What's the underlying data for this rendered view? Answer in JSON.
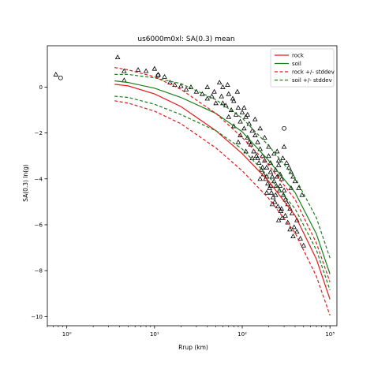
{
  "chart_data": {
    "type": "scatter",
    "title": "us6000m0xl: SA(0.3) mean",
    "xlabel": "Rrup (km)",
    "ylabel": "SA(0.3) ln(g)",
    "xscale": "log",
    "xlim": [
      0.6,
      1200
    ],
    "ylim": [
      -10.4,
      1.8
    ],
    "grid": false,
    "legend_position": "top-right",
    "x_ticks": [
      {
        "value": 1,
        "label": "10⁰"
      },
      {
        "value": 10,
        "label": "10¹"
      },
      {
        "value": 100,
        "label": "10²"
      },
      {
        "value": 1000,
        "label": "10³"
      }
    ],
    "y_ticks": [
      {
        "value": 0,
        "label": "0"
      },
      {
        "value": -2,
        "label": "−2"
      },
      {
        "value": -4,
        "label": "−4"
      },
      {
        "value": -6,
        "label": "−6"
      },
      {
        "value": -8,
        "label": "−8"
      },
      {
        "value": -10,
        "label": "−10"
      }
    ],
    "series": [
      {
        "name": "rock",
        "style": "solid",
        "color": "#e41a1c",
        "x": [
          3.5,
          5,
          10,
          20,
          50,
          100,
          200,
          400,
          700,
          1000
        ],
        "y": [
          0.12,
          0.05,
          -0.3,
          -0.85,
          -1.9,
          -2.9,
          -4.1,
          -5.6,
          -7.5,
          -9.25
        ]
      },
      {
        "name": "soil",
        "style": "solid",
        "color": "#1a7f1a",
        "x": [
          3.5,
          5,
          10,
          20,
          50,
          100,
          200,
          400,
          700,
          1000
        ],
        "y": [
          0.27,
          0.2,
          -0.05,
          -0.45,
          -1.15,
          -1.95,
          -3.2,
          -4.6,
          -6.4,
          -8.15
        ]
      },
      {
        "name": "rock +/- stddev",
        "style": "dashed",
        "color": "#e41a1c",
        "x": [
          3.5,
          5,
          10,
          20,
          50,
          100,
          200,
          400,
          700,
          1000
        ],
        "y": [
          0.85,
          0.75,
          0.45,
          -0.1,
          -1.15,
          -2.2,
          -3.4,
          -4.9,
          -6.8,
          -8.5
        ]
      },
      {
        "name": "rock +/- stddev (lower)",
        "style": "dashed",
        "color": "#e41a1c",
        "x": [
          3.5,
          5,
          10,
          20,
          50,
          100,
          200,
          400,
          700,
          1000
        ],
        "y": [
          -0.6,
          -0.7,
          -1.05,
          -1.6,
          -2.65,
          -3.65,
          -4.85,
          -6.35,
          -8.25,
          -9.95
        ]
      },
      {
        "name": "soil +/- stddev",
        "style": "dashed",
        "color": "#1a7f1a",
        "x": [
          3.5,
          5,
          10,
          20,
          50,
          100,
          200,
          400,
          700,
          1000
        ],
        "y": [
          0.55,
          0.55,
          0.4,
          0.15,
          -0.55,
          -1.35,
          -2.55,
          -3.95,
          -5.7,
          -7.45
        ]
      },
      {
        "name": "soil +/- stddev (lower)",
        "style": "dashed",
        "color": "#1a7f1a",
        "x": [
          3.5,
          5,
          10,
          20,
          50,
          100,
          200,
          400,
          700,
          1000
        ],
        "y": [
          -0.4,
          -0.45,
          -0.75,
          -1.2,
          -1.9,
          -2.7,
          -3.9,
          -5.3,
          -7.1,
          -8.85
        ]
      }
    ],
    "observations": {
      "triangles": [
        [
          0.75,
          0.55
        ],
        [
          3.8,
          1.3
        ],
        [
          4.5,
          0.7
        ],
        [
          4.5,
          0.3
        ],
        [
          6.5,
          0.75
        ],
        [
          8,
          0.7
        ],
        [
          10,
          0.8
        ],
        [
          11,
          0.55
        ],
        [
          13,
          0.45
        ],
        [
          15,
          0.2
        ],
        [
          17,
          0.1
        ],
        [
          20,
          0.05
        ],
        [
          23,
          -0.1
        ],
        [
          26,
          0.0
        ],
        [
          30,
          -0.2
        ],
        [
          35,
          -0.3
        ],
        [
          40,
          -0.5
        ],
        [
          45,
          -0.4
        ],
        [
          50,
          -0.7
        ],
        [
          55,
          0.2
        ],
        [
          60,
          0.0
        ],
        [
          65,
          -0.8
        ],
        [
          70,
          -0.3
        ],
        [
          75,
          -1.0
        ],
        [
          80,
          -0.6
        ],
        [
          85,
          -1.2
        ],
        [
          90,
          -0.9
        ],
        [
          95,
          -1.5
        ],
        [
          100,
          -1.1
        ],
        [
          105,
          -1.8
        ],
        [
          110,
          -1.3
        ],
        [
          115,
          -2.2
        ],
        [
          120,
          -1.6
        ],
        [
          125,
          -2.5
        ],
        [
          130,
          -1.9
        ],
        [
          135,
          -2.8
        ],
        [
          140,
          -2.1
        ],
        [
          145,
          -3.0
        ],
        [
          150,
          -2.4
        ],
        [
          155,
          -3.3
        ],
        [
          160,
          -2.7
        ],
        [
          165,
          -3.6
        ],
        [
          170,
          -3.0
        ],
        [
          175,
          -3.8
        ],
        [
          180,
          -3.2
        ],
        [
          185,
          -4.0
        ],
        [
          190,
          -3.5
        ],
        [
          195,
          -4.2
        ],
        [
          200,
          -3.0
        ],
        [
          205,
          -4.4
        ],
        [
          210,
          -3.7
        ],
        [
          215,
          -4.6
        ],
        [
          220,
          -3.9
        ],
        [
          225,
          -4.8
        ],
        [
          230,
          -4.1
        ],
        [
          235,
          -5.0
        ],
        [
          240,
          -3.6
        ],
        [
          245,
          -4.3
        ],
        [
          250,
          -2.8
        ],
        [
          255,
          -5.2
        ],
        [
          260,
          -3.4
        ],
        [
          265,
          -4.5
        ],
        [
          270,
          -3.8
        ],
        [
          275,
          -5.4
        ],
        [
          280,
          -4.0
        ],
        [
          285,
          -5.7
        ],
        [
          290,
          -3.1
        ],
        [
          295,
          -4.7
        ],
        [
          300,
          -2.6
        ],
        [
          310,
          -4.9
        ],
        [
          320,
          -3.3
        ],
        [
          330,
          -5.1
        ],
        [
          340,
          -3.5
        ],
        [
          350,
          -5.3
        ],
        [
          360,
          -3.7
        ],
        [
          370,
          -5.5
        ],
        [
          380,
          -3.9
        ],
        [
          390,
          -6.1
        ],
        [
          400,
          -4.1
        ],
        [
          420,
          -6.3
        ],
        [
          440,
          -4.4
        ],
        [
          460,
          -6.6
        ],
        [
          480,
          -4.7
        ],
        [
          500,
          -6.9
        ],
        [
          140,
          -1.4
        ],
        [
          160,
          -1.8
        ],
        [
          180,
          -2.2
        ],
        [
          200,
          -2.6
        ],
        [
          230,
          -2.9
        ],
        [
          260,
          -3.2
        ],
        [
          120,
          -2.4
        ],
        [
          150,
          -3.1
        ],
        [
          170,
          -3.5
        ],
        [
          190,
          -3.9
        ],
        [
          210,
          -4.3
        ],
        [
          240,
          -4.7
        ],
        [
          130,
          -3.1
        ],
        [
          160,
          -4.0
        ],
        [
          190,
          -4.6
        ],
        [
          220,
          -5.1
        ],
        [
          280,
          -5.3
        ],
        [
          330,
          -5.9
        ],
        [
          90,
          -2.4
        ],
        [
          110,
          -2.8
        ],
        [
          210,
          -3.3
        ],
        [
          250,
          -3.9
        ],
        [
          270,
          -4.3
        ],
        [
          300,
          -4.5
        ],
        [
          60,
          -0.7
        ],
        [
          70,
          -1.3
        ],
        [
          80,
          -1.7
        ],
        [
          95,
          -2.1
        ],
        [
          105,
          -0.9
        ],
        [
          115,
          -1.2
        ],
        [
          40,
          0.0
        ],
        [
          48,
          -0.2
        ],
        [
          58,
          -0.4
        ],
        [
          68,
          0.1
        ],
        [
          78,
          -0.5
        ],
        [
          88,
          -0.2
        ],
        [
          350,
          -6.2
        ],
        [
          420,
          -5.8
        ],
        [
          380,
          -6.5
        ],
        [
          310,
          -5.6
        ],
        [
          360,
          -4.4
        ],
        [
          260,
          -5.8
        ]
      ],
      "circles": [
        [
          0.85,
          0.4
        ],
        [
          11,
          0.5
        ],
        [
          300,
          -1.8
        ]
      ]
    }
  }
}
